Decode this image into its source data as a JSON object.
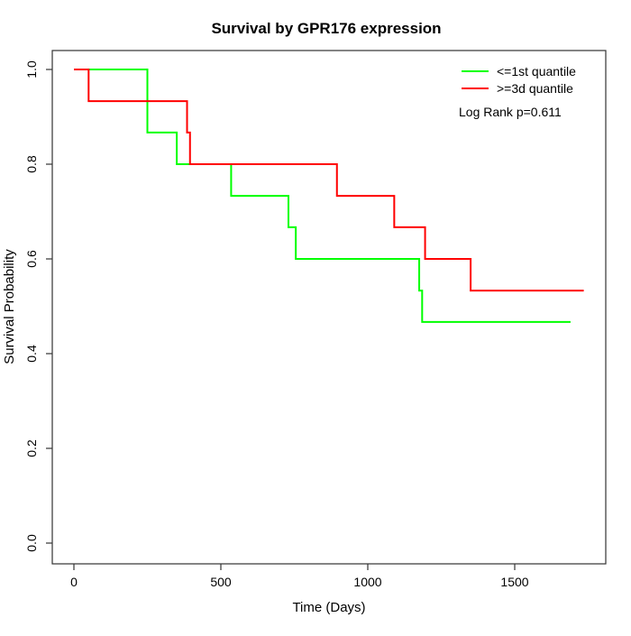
{
  "chart_data": {
    "type": "line",
    "subtype": "kaplan-meier-step",
    "title": "Survival by GPR176 expression",
    "xlabel": "Time (Days)",
    "ylabel": "Survival Probability",
    "xlim": [
      0,
      1750
    ],
    "ylim": [
      0,
      1
    ],
    "grid": false,
    "x_ticks": [
      0,
      500,
      1000,
      1500
    ],
    "y_ticks": [
      "0.0",
      "0.2",
      "0.4",
      "0.6",
      "0.8",
      "1.0"
    ],
    "legend_position": "top-right",
    "annotation": "Log Rank p=0.611",
    "series": [
      {
        "name": "<=1st quantile",
        "color": "#00ff00",
        "points": [
          [
            0,
            1.0
          ],
          [
            250,
            0.867
          ],
          [
            350,
            0.8
          ],
          [
            535,
            0.733
          ],
          [
            730,
            0.667
          ],
          [
            755,
            0.6
          ],
          [
            1175,
            0.533
          ],
          [
            1185,
            0.467
          ]
        ],
        "end_time": 1690
      },
      {
        "name": ">=3d quantile",
        "color": "#ff0000",
        "points": [
          [
            0,
            1.0
          ],
          [
            50,
            0.933
          ],
          [
            385,
            0.867
          ],
          [
            395,
            0.8
          ],
          [
            895,
            0.733
          ],
          [
            1090,
            0.667
          ],
          [
            1195,
            0.6
          ],
          [
            1350,
            0.533
          ]
        ],
        "end_time": 1735
      }
    ]
  }
}
